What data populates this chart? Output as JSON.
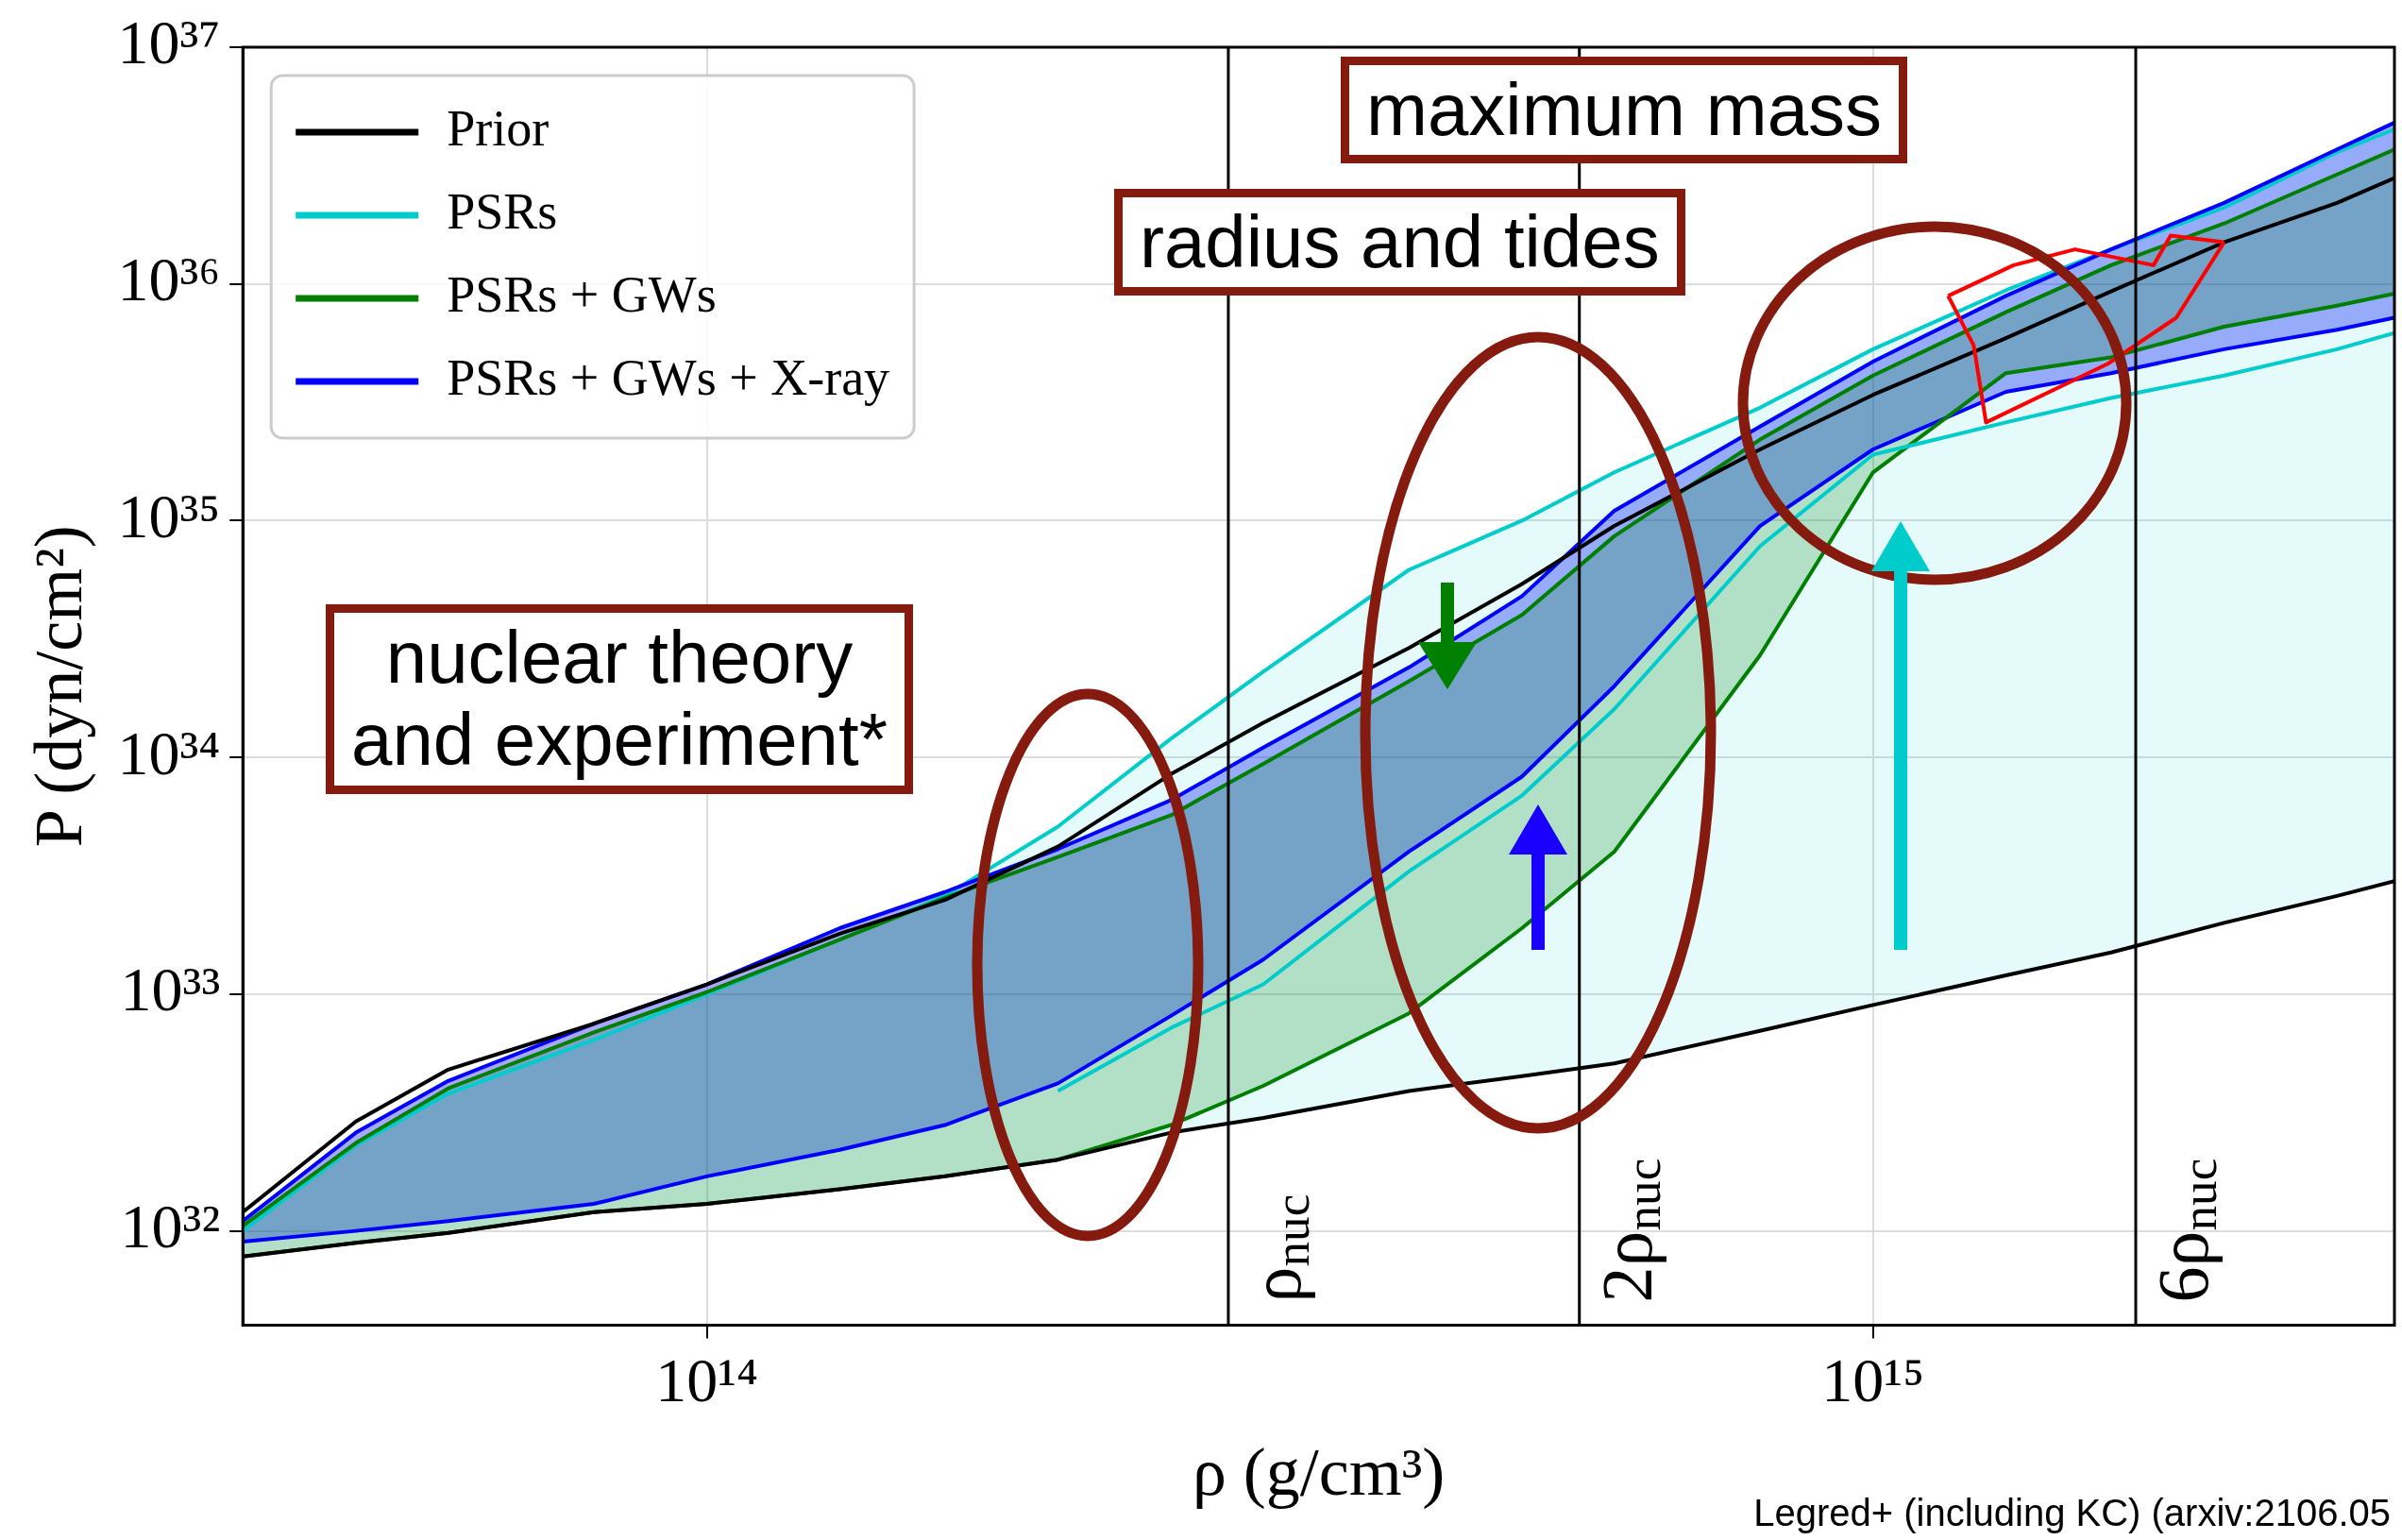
{
  "chart_data": {
    "type": "line",
    "xlabel": "ρ (g/cm³)",
    "ylabel": "P (dyn/cm²)",
    "x": [
      40000000000000.0,
      50000000000000.0,
      60000000000000.0,
      80000000000000.0,
      100000000000000.0,
      130000000000000.0,
      160000000000000.0,
      200000000000000.0,
      250000000000000.0,
      300000000000000.0,
      400000000000000.0,
      500000000000000.0,
      600000000000000.0,
      800000000000000.0,
      1000000000000000.0,
      1300000000000000.0,
      1600000000000000.0,
      2000000000000000.0,
      2500000000000000.0,
      2800000000000000.0
    ],
    "series": [
      {
        "name": "Prior",
        "color": "#000000",
        "values": [
          1.2e+32,
          2.9e+32,
          4.8e+32,
          7.5e+32,
          1.1e+33,
          1.8e+33,
          2.5e+33,
          4.2e+33,
          8.5e+33,
          1.4e+34,
          2.9e+34,
          5.4e+34,
          9.5e+34,
          2e+35,
          3.4e+35,
          5.9e+35,
          9.3e+35,
          1.5e+36,
          2.2e+36,
          2.8e+36
        ]
      },
      {
        "color": "#000000",
        "values": [
          7.8e+31,
          8.9e+31,
          9.8e+31,
          1.2e+32,
          1.3e+32,
          1.5e+32,
          1.7e+32,
          2e+32,
          2.6e+32,
          3e+32,
          3.9e+32,
          4.5e+32,
          5.1e+32,
          7e+32,
          9e+32,
          1.2e+33,
          1.5e+33,
          2e+33,
          2.6e+33,
          3e+33
        ]
      },
      {
        "name": "PSRs",
        "color": "#00cccc",
        "values": [
          1e+32,
          2.3e+32,
          3.8e+32,
          6.4e+32,
          1e+33,
          1.7e+33,
          2.6e+33,
          5.1e+33,
          1.2e+34,
          2.3e+34,
          6.2e+34,
          1e+35,
          1.6e+35,
          3e+35,
          5.3e+35,
          9.4e+35,
          1.4e+36,
          2.1e+36,
          3.6e+36,
          4.5e+36
        ],
        "lower": [
          7.8e+31,
          8.9e+31,
          9.8e+31,
          1.2e+32,
          1.3e+32,
          1.5e+32,
          1.7e+32,
          2e+32,
          2.6e+32,
          3e+32,
          3.9e+32,
          4.5e+32,
          5.1e+32,
          7e+32,
          9e+32,
          1.2e+33,
          1.5e+33,
          2e+33,
          2.6e+33,
          3e+33
        ],
        "upper": [
          1e+32,
          2.3e+32,
          3.8e+32,
          6.4e+32,
          1e+33,
          1.7e+33,
          2.6e+33,
          5.1e+33,
          1.2e+34,
          2.3e+34,
          6.2e+34,
          1e+35,
          1.6e+35,
          3e+35,
          5.3e+35,
          9.4e+35,
          1.4e+36,
          2.1e+36,
          3.6e+36,
          4.5e+36
        ]
      },
      {
        "color": "#00cccc",
        "values": [
          null,
          null,
          null,
          null,
          null,
          null,
          null,
          3.9e+32,
          7.2e+32,
          1.1e+33,
          3.3e+33,
          6.9e+33,
          1.6e+34,
          7.8e+34,
          1.9e+35,
          2.6e+35,
          3.3e+35,
          4.1e+35,
          5.3e+35,
          6.2e+35
        ]
      },
      {
        "name": "PSRs + GWs",
        "color": "#007f00",
        "values": [
          1.05e+32,
          2.35e+32,
          4e+32,
          6.9e+32,
          1.02e+33,
          1.7e+33,
          2.55e+33,
          3.8e+33,
          5.7e+33,
          9.4e+33,
          2.1e+34,
          4e+34,
          8.6e+34,
          2.2e+35,
          4.1e+35,
          7.6e+35,
          1.2e+36,
          1.8e+36,
          2.9e+36,
          3.7e+36
        ],
        "lower": [
          7.8e+31,
          8.9e+31,
          9.8e+31,
          1.2e+32,
          1.3e+32,
          1.5e+32,
          1.7e+32,
          2e+32,
          2.8e+32,
          4.1e+32,
          8.3e+32,
          1.9e+33,
          4e+33,
          2.7e+34,
          1.6e+35,
          4.2e+35,
          4.9e+35,
          6.6e+35,
          8.1e+35,
          9.1e+35
        ],
        "upper": [
          1.05e+32,
          2.35e+32,
          4e+32,
          6.9e+32,
          1.02e+33,
          1.7e+33,
          2.55e+33,
          3.8e+33,
          5.7e+33,
          9.4e+33,
          2.1e+34,
          4e+34,
          8.6e+34,
          2.2e+35,
          4.1e+35,
          7.6e+35,
          1.2e+36,
          1.8e+36,
          2.9e+36,
          3.7e+36
        ]
      },
      {
        "color": "#007f00",
        "values": [
          7.8e+31,
          8.9e+31,
          9.8e+31,
          1.2e+32,
          1.3e+32,
          1.5e+32,
          1.7e+32,
          2e+32,
          2.8e+32,
          4.1e+32,
          8.3e+32,
          1.9e+33,
          4e+33,
          2.7e+34,
          1.6e+35,
          4.2e+35,
          4.9e+35,
          6.6e+35,
          8.1e+35,
          9.1e+35
        ]
      },
      {
        "name": "PSRs + GWs + X-ray",
        "color": "#0000ff",
        "values": [
          1.1e+32,
          2.6e+32,
          4.3e+32,
          7.5e+32,
          1.1e+33,
          1.9e+33,
          2.7e+33,
          4.1e+33,
          6.6e+33,
          1.1e+34,
          2.4e+34,
          4.8e+34,
          1.1e+35,
          2.5e+35,
          4.7e+35,
          8.9e+35,
          1.4e+36,
          2.2e+36,
          3.7e+36,
          4.8e+36
        ],
        "lower": [
          9e+31,
          1e+32,
          1.1e+32,
          1.3e+32,
          1.7e+32,
          2.2e+32,
          2.8e+32,
          4.2e+32,
          8.1e+32,
          1.4e+33,
          4e+33,
          8.3e+33,
          2e+34,
          9.5e+34,
          2e+35,
          3.5e+35,
          4.2e+35,
          5.3e+35,
          6.4e+35,
          7.2e+35
        ],
        "upper": [
          1.1e+32,
          2.6e+32,
          4.3e+32,
          7.5e+32,
          1.1e+33,
          1.9e+33,
          2.7e+33,
          4.1e+33,
          6.6e+33,
          1.1e+34,
          2.4e+34,
          4.8e+34,
          1.1e+35,
          2.5e+35,
          4.7e+35,
          8.9e+35,
          1.4e+36,
          2.2e+36,
          3.7e+36,
          4.8e+36
        ]
      },
      {
        "color": "#0000ff",
        "values": [
          9e+31,
          1e+32,
          1.1e+32,
          1.3e+32,
          1.7e+32,
          2.2e+32,
          2.8e+32,
          4.2e+32,
          8.1e+32,
          1.4e+33,
          4e+33,
          8.3e+33,
          2e+34,
          9.5e+34,
          2e+35,
          3.5e+35,
          4.2e+35,
          5.3e+35,
          6.4e+35,
          7.2e+35
        ]
      },
      {
        "type": "line",
        "color": "#ff0000",
        "x": [
          1160000000000000.0,
          1320000000000000.0,
          1490000000000000.0,
          1740000000000000.0,
          1800000000000000.0,
          2000000000000000.0
        ],
        "values": [
          8.9e+35,
          1.2e+36,
          1.4e+36,
          1.2e+36,
          1.6e+36,
          1.5e+36
        ]
      },
      {
        "type": "line",
        "color": "#ff0000",
        "x": [
          1160000000000000.0,
          1220000000000000.0,
          1250000000000000.0,
          1590000000000000.0,
          1820000000000000.0,
          2000000000000000.0
        ],
        "values": [
          8.9e+35,
          5.5e+35,
          2.6e+35,
          4.6e+35,
          7.2e+35,
          1.5e+36
        ]
      }
    ],
    "xlim": [
      40000000000000.0,
      2800000000000000.0
    ],
    "xticks": [
      {
        "value": 100000000000000.0,
        "label": "10¹⁴"
      },
      {
        "value": 1000000000000000.0,
        "label": "10¹⁵"
      }
    ],
    "ylim": [
      4e+31,
      1e+37
    ],
    "yticks": [
      {
        "value": 1e+32,
        "label": "10³²"
      },
      {
        "value": 1e+33,
        "label": "10³³"
      },
      {
        "value": 1e+34,
        "label": "10³⁴"
      },
      {
        "value": 1e+35,
        "label": "10³⁵"
      },
      {
        "value": 1e+36,
        "label": "10³⁶"
      },
      {
        "value": 1e+37,
        "label": "10³⁷"
      }
    ],
    "log": "xy",
    "grid": true,
    "legend": "top left",
    "ref_lines": [
      {
        "axis": "x",
        "value": 280000000000000.0,
        "label": "ρ$_{nuc}$"
      },
      {
        "axis": "x",
        "value": 560000000000000.0,
        "label": "2ρ$_{nuc}$"
      },
      {
        "axis": "x",
        "value": 1680000000000000.0,
        "label": "6ρ$_{nuc}$"
      }
    ],
    "annotations": [
      "nuclear theory\nand experiment*",
      "radius and tides",
      "maximum mass",
      "Legred+ (including KC) (arxiv:2106.05"
    ]
  }
}
